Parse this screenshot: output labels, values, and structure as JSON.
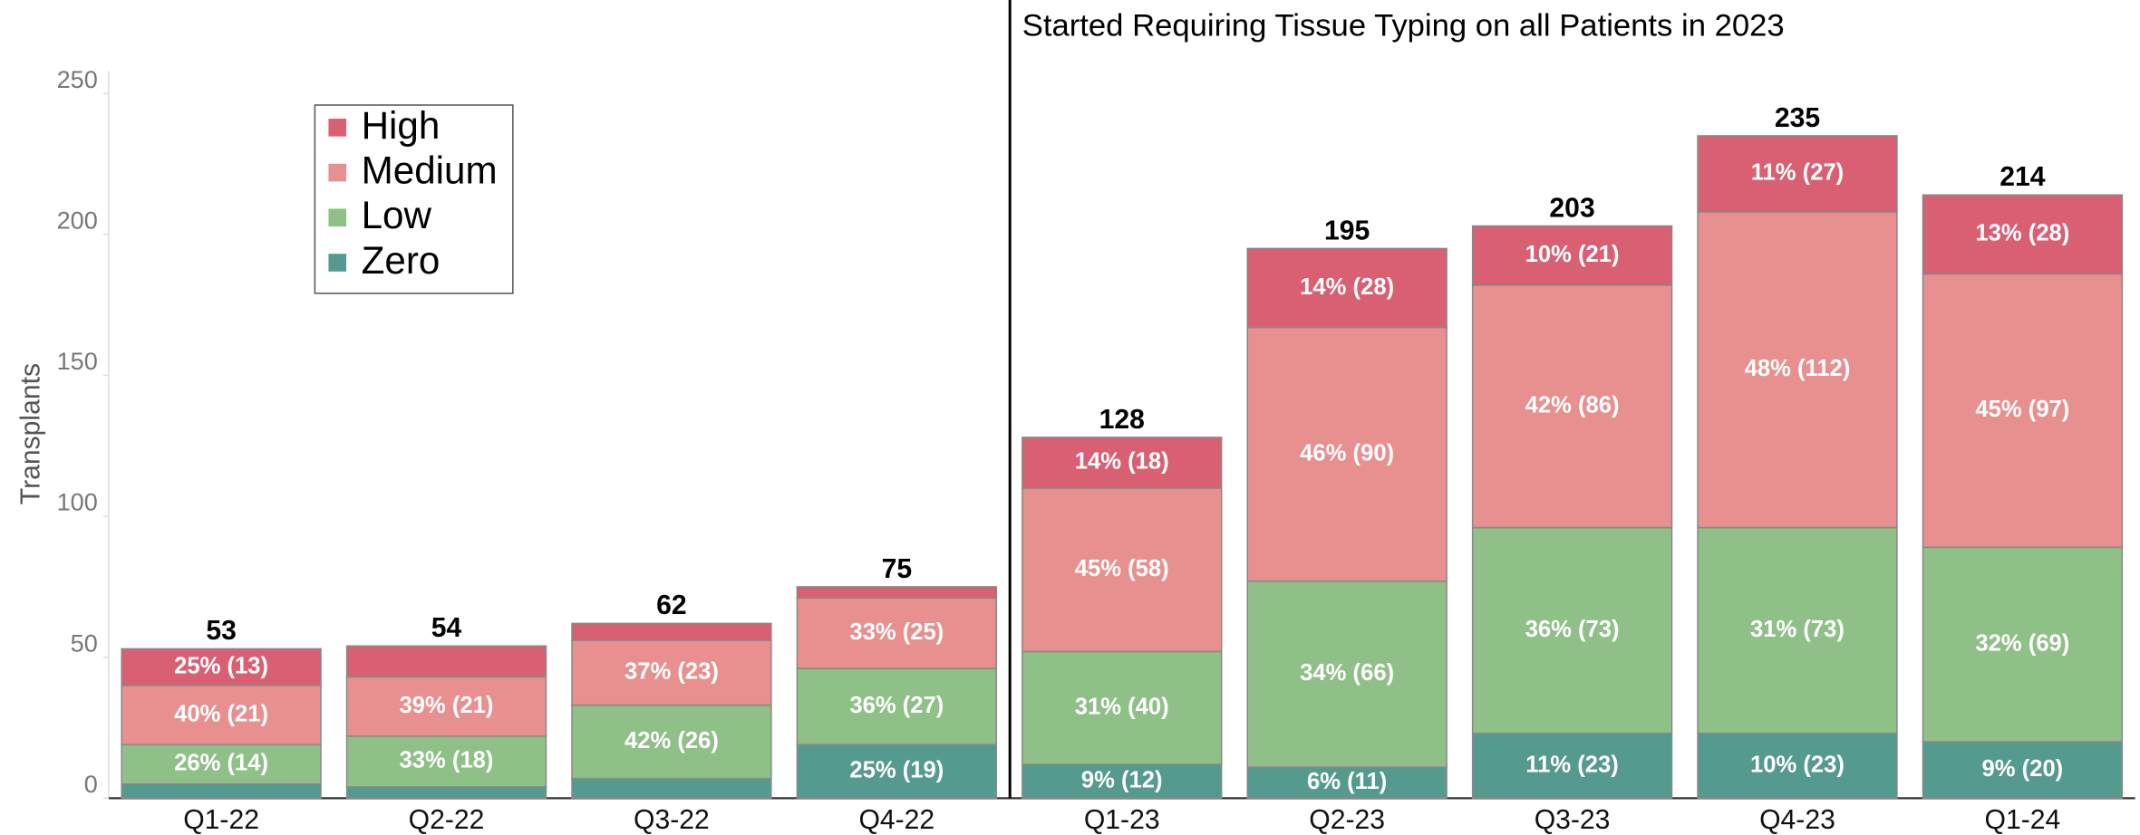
{
  "chart_data": {
    "type": "stacked_bar",
    "annotation": "Started Requiring Tissue Typing on all Patients in 2023",
    "ylabel": "Transplants",
    "categories": [
      "Q1-22",
      "Q2-22",
      "Q3-22",
      "Q4-22",
      "Q1-23",
      "Q2-23",
      "Q3-23",
      "Q4-23",
      "Q1-24"
    ],
    "series": [
      {
        "name": "Zero",
        "color": "#559a8e",
        "values": [
          5,
          4,
          7,
          19,
          12,
          11,
          23,
          23,
          20
        ],
        "value_labels": [
          null,
          null,
          null,
          "25% (19)",
          "9% (12)",
          "6% (11)",
          "11% (23)",
          "10% (23)",
          "9% (20)"
        ]
      },
      {
        "name": "Low",
        "color": "#8fc088",
        "values": [
          14,
          18,
          26,
          27,
          40,
          66,
          73,
          73,
          69
        ],
        "value_labels": [
          "26% (14)",
          "33% (18)",
          "42% (26)",
          "36% (27)",
          "31% (40)",
          "34% (66)",
          "36% (73)",
          "31% (73)",
          "32% (69)"
        ]
      },
      {
        "name": "Medium",
        "color": "#e89090",
        "values": [
          21,
          21,
          23,
          25,
          58,
          90,
          86,
          112,
          97
        ],
        "value_labels": [
          "40% (21)",
          "39% (21)",
          "37% (23)",
          "33% (25)",
          "45% (58)",
          "46% (90)",
          "42% (86)",
          "48% (112)",
          "45% (97)"
        ]
      },
      {
        "name": "High",
        "color": "#d95f73",
        "values": [
          13,
          11,
          6,
          4,
          18,
          28,
          21,
          27,
          28
        ],
        "value_labels": [
          "25% (13)",
          null,
          null,
          null,
          "14% (18)",
          "14% (28)",
          "10% (21)",
          "11% (27)",
          "13% (28)"
        ]
      }
    ],
    "totals": [
      53,
      54,
      62,
      75,
      128,
      195,
      203,
      235,
      214
    ],
    "ylim": [
      0,
      258
    ],
    "yticks": [
      0,
      50,
      100,
      150,
      200,
      250
    ],
    "grid": false,
    "legend": "upper left"
  }
}
